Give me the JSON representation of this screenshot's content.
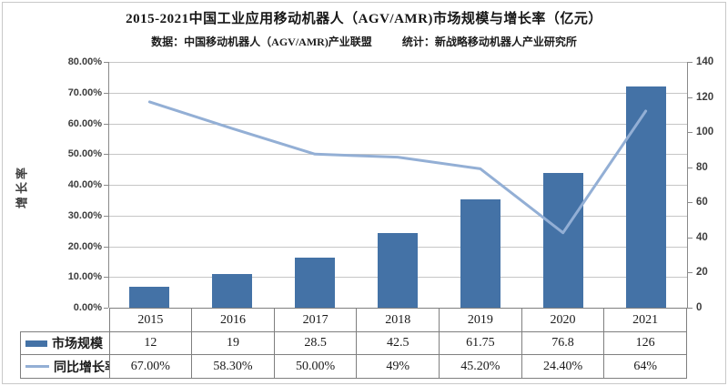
{
  "header": {
    "title": "2015-2021中国工业应用移动机器人（AGV/AMR)市场规模与增长率（亿元）",
    "subtitle_left": "数据：中国移动机器人（AGV/AMR)产业联盟",
    "subtitle_right": "统计：新战略移动机器人产业研究所"
  },
  "chart_data": {
    "type": "bar+line combo with data table",
    "categories": [
      "2015",
      "2016",
      "2017",
      "2018",
      "2019",
      "2020",
      "2021"
    ],
    "series": [
      {
        "name": "市场规模",
        "type": "bar",
        "axis": "right",
        "color": "#4472A6",
        "values": [
          12,
          19,
          28.5,
          42.5,
          61.75,
          76.8,
          126
        ],
        "display": [
          "12",
          "19",
          "28.5",
          "42.5",
          "61.75",
          "76.8",
          "126"
        ]
      },
      {
        "name": "同比增长率",
        "type": "line",
        "axis": "left",
        "color": "#93AFD5",
        "values": [
          67.0,
          58.3,
          50.0,
          49.0,
          45.2,
          24.4,
          64.0
        ],
        "display": [
          "67.00%",
          "58.30%",
          "50.00%",
          "49%",
          "45.20%",
          "24.40%",
          "64%"
        ]
      }
    ],
    "left_axis": {
      "label": "增长率",
      "min": 0,
      "max": 80,
      "step": 10,
      "ticks_top_to_bottom": [
        "80.00%",
        "70.00%",
        "60.00%",
        "50.00%",
        "40.00%",
        "30.00%",
        "20.00%",
        "10.00%",
        "0.00%"
      ]
    },
    "right_axis": {
      "min": 0,
      "max": 140,
      "step": 20,
      "ticks_top_to_bottom": [
        "140",
        "120",
        "100",
        "80",
        "60",
        "40",
        "20",
        "0"
      ]
    },
    "grid": true,
    "grid_color": "#c6c6c6",
    "legend_position": "table-left"
  }
}
